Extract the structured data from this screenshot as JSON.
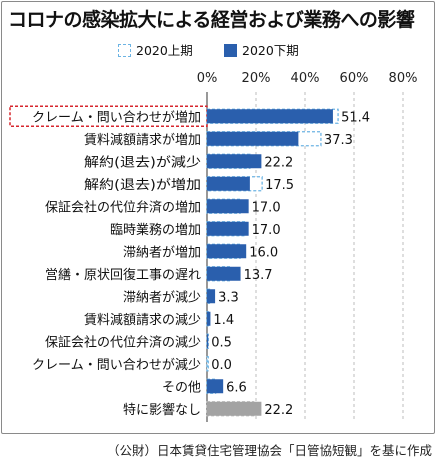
{
  "title": "コロナの感染拡大による経営および業務への影響",
  "source_note": "（公財）日本賃貸住宅管理協会「日管協短観」を基に作成",
  "colors": {
    "first_half": "#6cb4e4",
    "second_half": "#2a5fad",
    "no_effect": "#a3a3a3",
    "highlight": "#d7262d"
  },
  "chart_data": {
    "type": "bar",
    "orientation": "horizontal",
    "xlim": [
      0,
      80
    ],
    "xticks": [
      "0%",
      "20%",
      "40%",
      "60%",
      "80%"
    ],
    "categories": [
      "クレーム・問い合わせが増加",
      "賃料減額請求が増加",
      "解約(退去)が減少",
      "解約(退去)が増加",
      "保証会社の代位弁済の増加",
      "臨時業務の増加",
      "滞納者が増加",
      "営繕・原状回復工事の遅れ",
      "滞納者が減少",
      "賃料減額請求の減少",
      "保証会社の代位弁済の減少",
      "クレーム・問い合わせが減少",
      "その他",
      "特に影響なし"
    ],
    "series": [
      {
        "name": "2020上期",
        "style": "dashed-outline",
        "values": [
          53.5,
          46.5,
          17.5,
          22.5,
          13.5,
          16.0,
          13.5,
          10.0,
          1.0,
          0.5,
          0.5,
          0.5,
          3.5,
          19.0
        ]
      },
      {
        "name": "2020下期",
        "style": "solid",
        "values": [
          51.4,
          37.3,
          22.2,
          17.5,
          17.0,
          17.0,
          16.0,
          13.7,
          3.3,
          1.4,
          0.5,
          0.0,
          6.6,
          22.2
        ]
      }
    ],
    "value_labels": [
      "51.4",
      "37.3",
      "22.2",
      "17.5",
      "17.0",
      "17.0",
      "16.0",
      "13.7",
      "3.3",
      "1.4",
      "0.5",
      "0.0",
      "6.6",
      "22.2"
    ],
    "highlighted_category": "クレーム・問い合わせが増加"
  }
}
